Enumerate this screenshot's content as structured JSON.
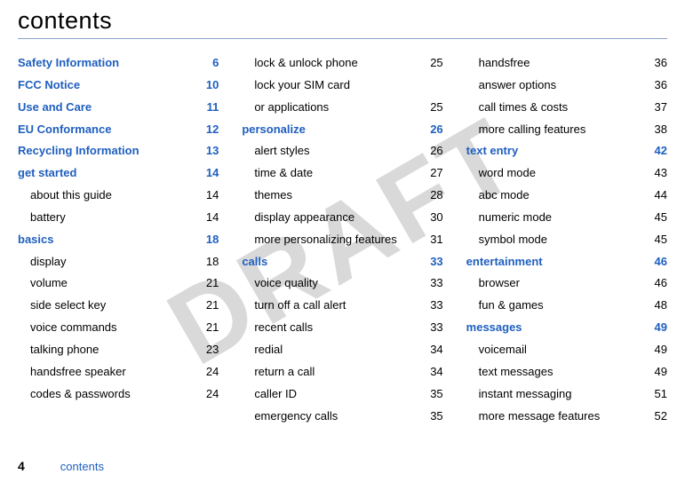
{
  "heading": "contents",
  "watermark": "DRAFT",
  "footer": {
    "pagenum": "4",
    "label": "contents"
  },
  "colors": {
    "link": "#1f5fbf",
    "rule": "#8aa3c8",
    "wm": "#d9d9d9",
    "text": "#000000"
  },
  "columns": [
    [
      {
        "t": "section",
        "label": "Safety Information",
        "page": "6"
      },
      {
        "t": "section",
        "label": "FCC Notice",
        "page": "10"
      },
      {
        "t": "section",
        "label": "Use and Care",
        "page": "11"
      },
      {
        "t": "section",
        "label": "EU Conformance",
        "page": "12"
      },
      {
        "t": "section",
        "label": "Recycling Information",
        "page": "13"
      },
      {
        "t": "section",
        "label": "get started",
        "page": "14"
      },
      {
        "t": "sub",
        "label": "about this guide",
        "page": "14"
      },
      {
        "t": "sub",
        "label": "battery",
        "page": "14"
      },
      {
        "t": "section",
        "label": "basics",
        "page": "18"
      },
      {
        "t": "sub",
        "label": "display",
        "page": "18"
      },
      {
        "t": "sub",
        "label": "volume",
        "page": "21"
      },
      {
        "t": "sub",
        "label": "side select key",
        "page": "21"
      },
      {
        "t": "sub",
        "label": "voice commands",
        "page": "21"
      },
      {
        "t": "sub",
        "label": "talking phone",
        "page": "23"
      },
      {
        "t": "sub",
        "label": "handsfree speaker",
        "page": "24"
      },
      {
        "t": "sub",
        "label": "codes & passwords",
        "page": "24"
      }
    ],
    [
      {
        "t": "sub",
        "label": "lock & unlock phone",
        "page": "25"
      },
      {
        "t": "sub",
        "label": "lock your SIM card",
        "page": ""
      },
      {
        "t": "sub",
        "label": "or applications",
        "page": "25"
      },
      {
        "t": "section",
        "label": "personalize",
        "page": "26"
      },
      {
        "t": "sub",
        "label": "alert styles",
        "page": "26"
      },
      {
        "t": "sub",
        "label": "time & date",
        "page": "27"
      },
      {
        "t": "sub",
        "label": "themes",
        "page": "28"
      },
      {
        "t": "sub",
        "label": "display appearance",
        "page": "30"
      },
      {
        "t": "sub",
        "label": "more personalizing features",
        "page": "31"
      },
      {
        "t": "section",
        "label": "calls",
        "page": "33"
      },
      {
        "t": "sub",
        "label": "voice quality",
        "page": "33"
      },
      {
        "t": "sub",
        "label": "turn off a call alert",
        "page": "33"
      },
      {
        "t": "sub",
        "label": "recent calls",
        "page": "33"
      },
      {
        "t": "sub",
        "label": "redial",
        "page": "34"
      },
      {
        "t": "sub",
        "label": "return a call",
        "page": "34"
      },
      {
        "t": "sub",
        "label": "caller ID",
        "page": "35"
      },
      {
        "t": "sub",
        "label": "emergency calls",
        "page": "35"
      }
    ],
    [
      {
        "t": "sub",
        "label": "handsfree",
        "page": "36"
      },
      {
        "t": "sub",
        "label": "answer options",
        "page": "36"
      },
      {
        "t": "sub",
        "label": "call times & costs",
        "page": "37"
      },
      {
        "t": "sub",
        "label": "more calling features",
        "page": "38"
      },
      {
        "t": "section",
        "label": "text entry",
        "page": "42"
      },
      {
        "t": "sub",
        "label": "word mode",
        "page": "43"
      },
      {
        "t": "sub",
        "label": "abc mode",
        "page": "44"
      },
      {
        "t": "sub",
        "label": "numeric mode",
        "page": "45"
      },
      {
        "t": "sub",
        "label": "symbol mode",
        "page": "45"
      },
      {
        "t": "section",
        "label": "entertainment",
        "page": "46"
      },
      {
        "t": "sub",
        "label": "browser",
        "page": "46"
      },
      {
        "t": "sub",
        "label": "fun & games",
        "page": "48"
      },
      {
        "t": "section",
        "label": "messages",
        "page": "49"
      },
      {
        "t": "sub",
        "label": "voicemail",
        "page": "49"
      },
      {
        "t": "sub",
        "label": "text messages",
        "page": "49"
      },
      {
        "t": "sub",
        "label": "instant messaging",
        "page": "51"
      },
      {
        "t": "sub",
        "label": "more message features",
        "page": "52"
      }
    ]
  ]
}
